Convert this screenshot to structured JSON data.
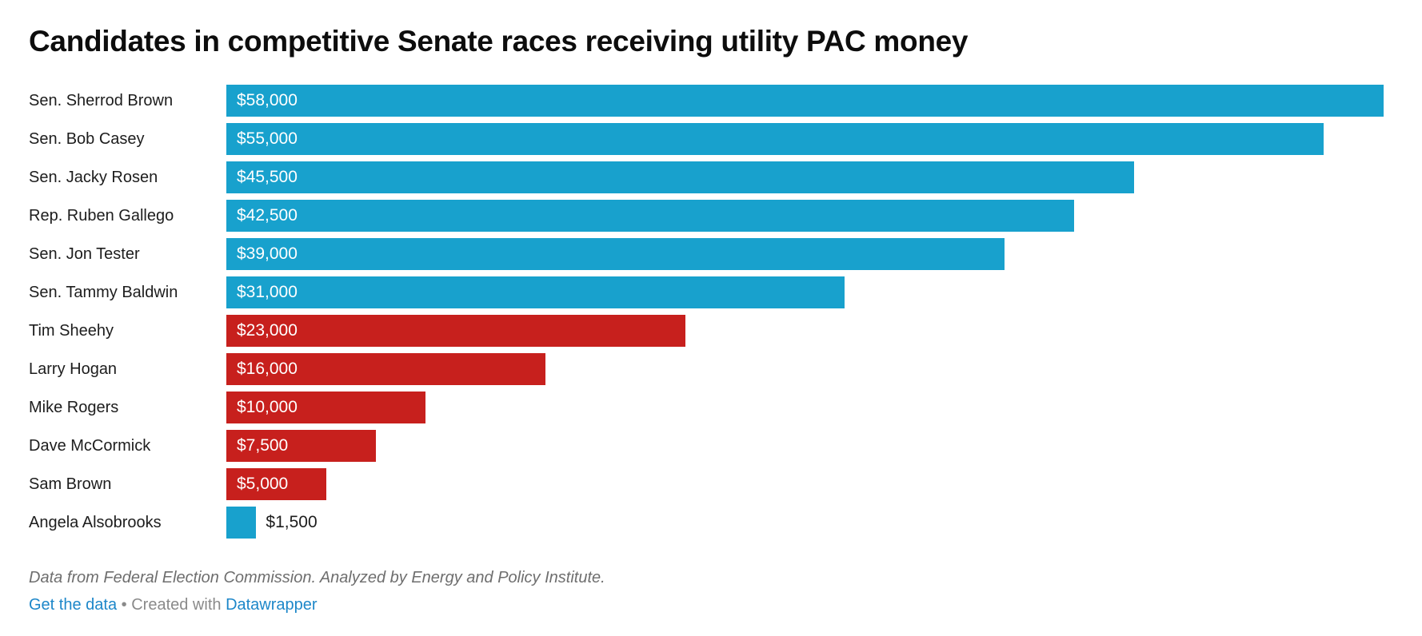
{
  "title": "Candidates in competitive Senate races receiving utility PAC money",
  "colors": {
    "blue": "#18a1cd",
    "red": "#c7201d",
    "title_text": "#0d0d0d",
    "label_text": "#1d1d1d",
    "value_text_inside": "#ffffff",
    "source_text": "#6e6e6e",
    "attribution_text": "#8a8a8a",
    "link": "#1d87c9"
  },
  "chart_data": {
    "type": "bar",
    "orientation": "horizontal",
    "title": "Candidates in competitive Senate races receiving utility PAC money",
    "xlabel": "",
    "ylabel": "",
    "unit": "USD",
    "xlim": [
      0,
      58000
    ],
    "grid": false,
    "legend": false,
    "categories": [
      "Sen. Sherrod Brown",
      "Sen. Bob Casey",
      "Sen. Jacky Rosen",
      "Rep. Ruben Gallego",
      "Sen. Jon Tester",
      "Sen. Tammy Baldwin",
      "Tim Sheehy",
      "Larry Hogan",
      "Mike Rogers",
      "Dave McCormick",
      "Sam Brown",
      "Angela Alsobrooks"
    ],
    "values": [
      58000,
      55000,
      45500,
      42500,
      39000,
      31000,
      23000,
      16000,
      10000,
      7500,
      5000,
      1500
    ],
    "rows": [
      {
        "name": "Sen. Sherrod Brown",
        "value": 58000,
        "label": "$58,000",
        "color": "blue",
        "label_inside": true
      },
      {
        "name": "Sen. Bob Casey",
        "value": 55000,
        "label": "$55,000",
        "color": "blue",
        "label_inside": true
      },
      {
        "name": "Sen. Jacky Rosen",
        "value": 45500,
        "label": "$45,500",
        "color": "blue",
        "label_inside": true
      },
      {
        "name": "Rep. Ruben Gallego",
        "value": 42500,
        "label": "$42,500",
        "color": "blue",
        "label_inside": true
      },
      {
        "name": "Sen. Jon Tester",
        "value": 39000,
        "label": "$39,000",
        "color": "blue",
        "label_inside": true
      },
      {
        "name": "Sen. Tammy Baldwin",
        "value": 31000,
        "label": "$31,000",
        "color": "blue",
        "label_inside": true
      },
      {
        "name": "Tim Sheehy",
        "value": 23000,
        "label": "$23,000",
        "color": "red",
        "label_inside": true
      },
      {
        "name": "Larry Hogan",
        "value": 16000,
        "label": "$16,000",
        "color": "red",
        "label_inside": true
      },
      {
        "name": "Mike Rogers",
        "value": 10000,
        "label": "$10,000",
        "color": "red",
        "label_inside": true
      },
      {
        "name": "Dave McCormick",
        "value": 7500,
        "label": "$7,500",
        "color": "red",
        "label_inside": true
      },
      {
        "name": "Sam Brown",
        "value": 5000,
        "label": "$5,000",
        "color": "red",
        "label_inside": true
      },
      {
        "name": "Angela Alsobrooks",
        "value": 1500,
        "label": "$1,500",
        "color": "blue",
        "label_inside": false
      }
    ]
  },
  "footer": {
    "source_note": "Data from Federal Election Commission. Analyzed by Energy and Policy Institute.",
    "get_the_data_label": "Get the data",
    "separator": "•",
    "created_with_label": "Created with",
    "datawrapper_label": "Datawrapper"
  }
}
